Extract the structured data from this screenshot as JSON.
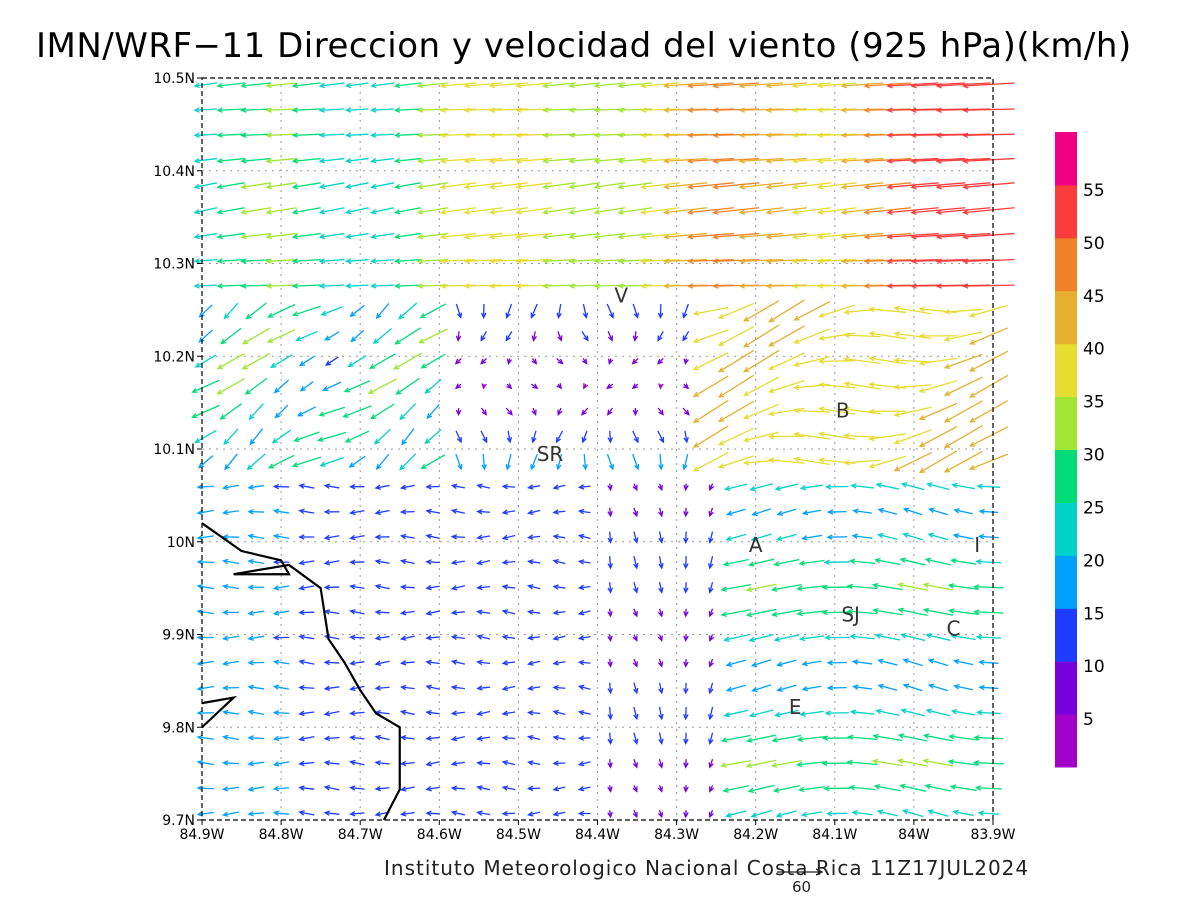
{
  "title": "IMN/WRF−11 Direccion y velocidad del viento (925 hPa)(km/h)",
  "credit": "Instituto Meteorologico Nacional Costa Rica 11Z17JUL2024",
  "reference_vector": {
    "label": "60",
    "speed": 60
  },
  "map_data": {
    "type": "vector-field",
    "lon_range": [
      -84.9,
      -83.9
    ],
    "lat_range": [
      9.7,
      10.5
    ],
    "x_ticks": [
      {
        "value": -84.9,
        "label": "84.9W"
      },
      {
        "value": -84.8,
        "label": "84.8W"
      },
      {
        "value": -84.7,
        "label": "84.7W"
      },
      {
        "value": -84.6,
        "label": "84.6W"
      },
      {
        "value": -84.5,
        "label": "84.5W"
      },
      {
        "value": -84.4,
        "label": "84.4W"
      },
      {
        "value": -84.3,
        "label": "84.3W"
      },
      {
        "value": -84.2,
        "label": "84.2W"
      },
      {
        "value": -84.1,
        "label": "84.1W"
      },
      {
        "value": -84.0,
        "label": "84W"
      },
      {
        "value": -83.9,
        "label": "83.9W"
      }
    ],
    "y_ticks": [
      {
        "value": 9.7,
        "label": "9.7N"
      },
      {
        "value": 9.8,
        "label": "9.8N"
      },
      {
        "value": 9.9,
        "label": "9.9N"
      },
      {
        "value": 10.0,
        "label": "10N"
      },
      {
        "value": 10.1,
        "label": "10.1N"
      },
      {
        "value": 10.2,
        "label": "10.2N"
      },
      {
        "value": 10.3,
        "label": "10.3N"
      },
      {
        "value": 10.4,
        "label": "10.4N"
      },
      {
        "value": 10.5,
        "label": "10.5N"
      }
    ],
    "grid": true,
    "legend_position": "right",
    "station_labels": [
      {
        "text": "V",
        "lon": -84.37,
        "lat": 10.264
      },
      {
        "text": "SR",
        "lon": -84.46,
        "lat": 10.093
      },
      {
        "text": "B",
        "lon": -84.09,
        "lat": 10.14
      },
      {
        "text": "A",
        "lon": -84.2,
        "lat": 9.995
      },
      {
        "text": "I",
        "lon": -83.92,
        "lat": 9.995
      },
      {
        "text": "SJ",
        "lon": -84.08,
        "lat": 9.92
      },
      {
        "text": "C",
        "lon": -83.95,
        "lat": 9.905
      },
      {
        "text": "E",
        "lon": -84.15,
        "lat": 9.82
      }
    ],
    "coastline": [
      [
        -84.9,
        10.02
      ],
      [
        -84.85,
        9.99
      ],
      [
        -84.8,
        9.98
      ],
      [
        -84.79,
        9.965
      ],
      [
        -84.86,
        9.965
      ],
      [
        -84.79,
        9.975
      ],
      [
        -84.75,
        9.95
      ],
      [
        -84.74,
        9.895
      ],
      [
        -84.72,
        9.87
      ],
      [
        -84.7,
        9.84
      ],
      [
        -84.68,
        9.815
      ],
      [
        -84.65,
        9.8
      ],
      [
        -84.65,
        9.733
      ],
      [
        -84.67,
        9.7
      ]
    ],
    "peninsula": [
      [
        -84.9,
        9.826
      ],
      [
        -84.86,
        9.832
      ],
      [
        -84.9,
        9.8
      ]
    ]
  },
  "colorbar": {
    "bins": [
      {
        "color": "#a000c8",
        "label": "5"
      },
      {
        "color": "#7800dc",
        "label": "10"
      },
      {
        "color": "#1e3cff",
        "label": "15"
      },
      {
        "color": "#00a0ff",
        "label": "20"
      },
      {
        "color": "#00d2c8",
        "label": "25"
      },
      {
        "color": "#00dc78",
        "label": "30"
      },
      {
        "color": "#a0e632",
        "label": "35"
      },
      {
        "color": "#e6dc32",
        "label": "40"
      },
      {
        "color": "#e6af2d",
        "label": "45"
      },
      {
        "color": "#f08228",
        "label": "50"
      },
      {
        "color": "#fa3c3c",
        "label": "55"
      },
      {
        "color": "#f00082",
        "label": ""
      }
    ]
  }
}
